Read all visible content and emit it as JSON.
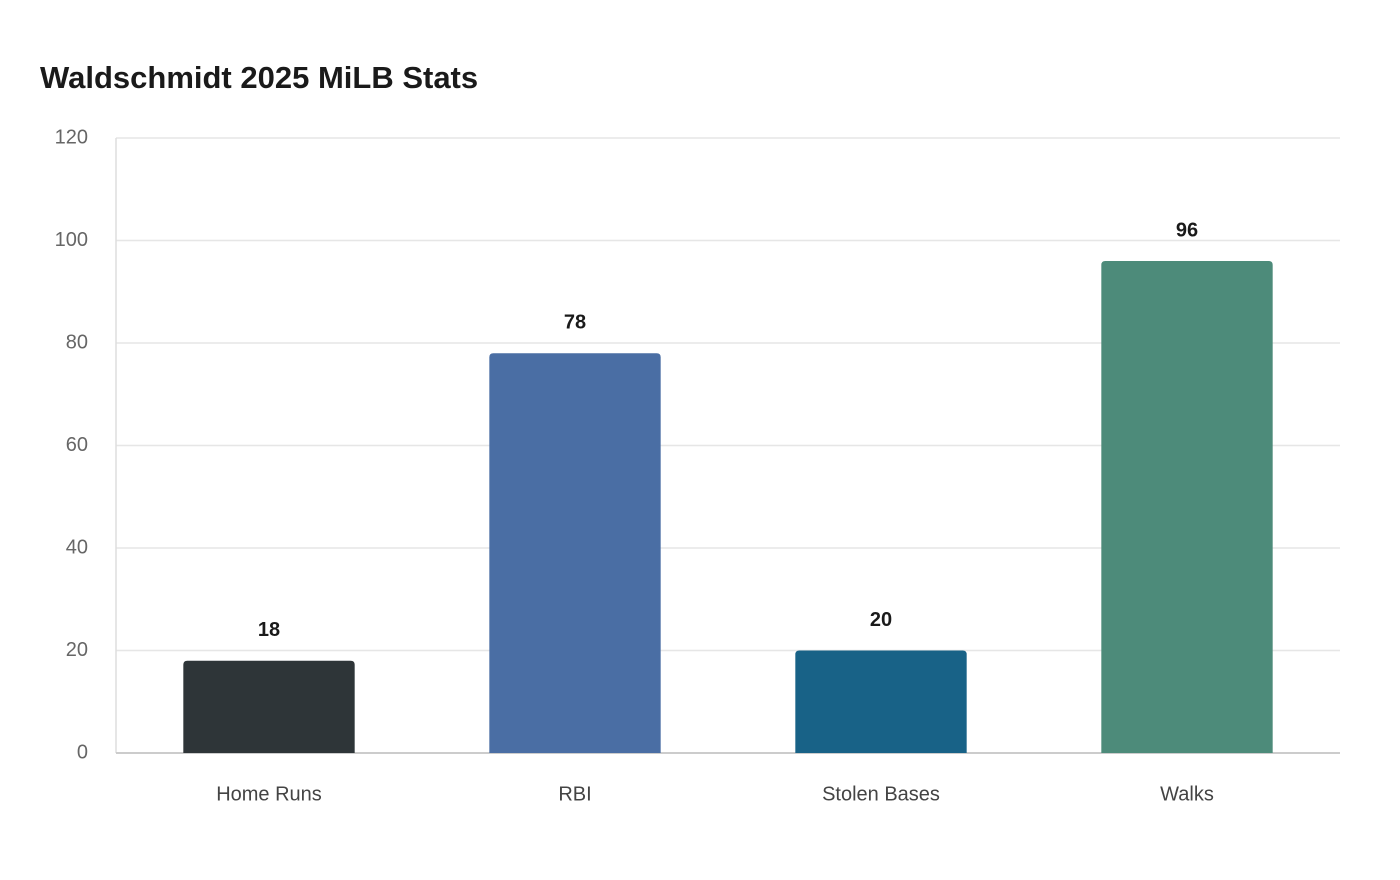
{
  "chart_data": {
    "type": "bar",
    "title": "Waldschmidt 2025 MiLB Stats",
    "categories": [
      "Home Runs",
      "RBI",
      "Stolen Bases",
      "Walks"
    ],
    "values": [
      18,
      78,
      20,
      96
    ],
    "colors": [
      "#2e3538",
      "#4a6ea4",
      "#186287",
      "#4d8b7a"
    ],
    "ylim": [
      0,
      120
    ],
    "yticks": [
      0,
      20,
      40,
      60,
      80,
      100,
      120
    ],
    "grid": true
  }
}
